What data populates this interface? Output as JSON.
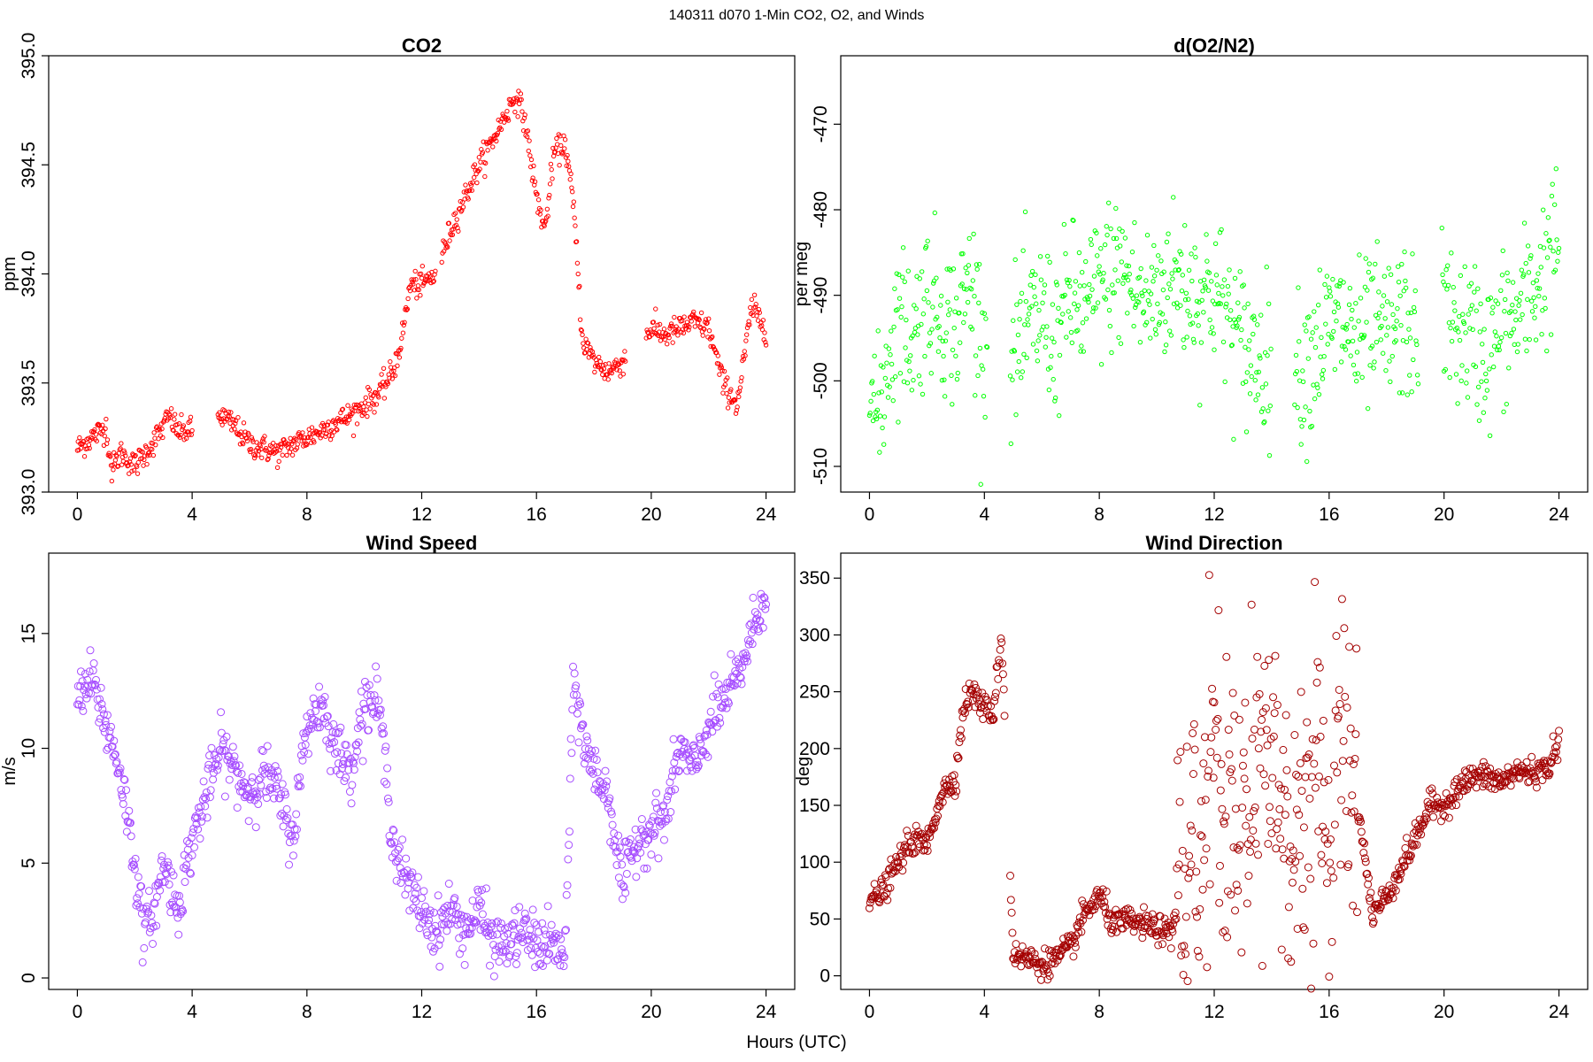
{
  "figure": {
    "main_title": "140311   d070   1-Min CO2, O2, and Winds",
    "shared_xlabel": "Hours (UTC)"
  },
  "chart_data": [
    {
      "id": "co2",
      "type": "scatter",
      "title": "CO2",
      "xlabel": "",
      "ylabel": "ppm",
      "xlim": [
        -1,
        25
      ],
      "ylim": [
        393.0,
        395.0
      ],
      "xticks": [
        0,
        4,
        8,
        12,
        16,
        20,
        24
      ],
      "yticks": [
        393.0,
        393.5,
        394.0,
        394.5,
        395.0
      ],
      "ytick_labels": [
        "393.0",
        "393.5",
        "394.0",
        "394.5",
        "395.0"
      ],
      "yaxis_rotated": true,
      "marker_size": 2.2,
      "color": "#ff0000",
      "grid": false,
      "series_points_approx": {
        "x": [
          0.0,
          0.5,
          1.0,
          1.2,
          1.5,
          2.0,
          2.5,
          3.0,
          3.2,
          3.5,
          4.0,
          5.0,
          5.5,
          6.0,
          6.5,
          7.0,
          7.5,
          8.0,
          8.5,
          9.0,
          9.5,
          10.0,
          10.5,
          11.0,
          11.3,
          11.6,
          12.0,
          12.5,
          13.0,
          13.5,
          14.0,
          14.5,
          15.0,
          15.3,
          15.6,
          16.0,
          16.3,
          16.6,
          17.0,
          17.3,
          17.6,
          18.0,
          18.5,
          19.0,
          20.0,
          20.5,
          21.0,
          21.5,
          22.0,
          22.5,
          23.0,
          23.5,
          24.0
        ],
        "y": [
          393.2,
          393.25,
          393.3,
          393.1,
          393.18,
          393.12,
          393.2,
          393.3,
          393.35,
          393.28,
          393.28,
          393.35,
          393.3,
          393.22,
          393.2,
          393.18,
          393.22,
          393.25,
          393.28,
          393.32,
          393.35,
          393.4,
          393.45,
          393.55,
          393.7,
          393.95,
          393.95,
          394.0,
          394.2,
          394.35,
          394.5,
          394.62,
          394.75,
          394.82,
          394.7,
          394.35,
          394.2,
          394.55,
          394.6,
          394.3,
          393.7,
          393.6,
          393.55,
          393.6,
          393.75,
          393.72,
          393.75,
          393.78,
          393.75,
          393.5,
          393.4,
          393.85,
          393.75
        ]
      }
    },
    {
      "id": "o2n2",
      "type": "scatter",
      "title": "d(O2/N2)",
      "xlabel": "",
      "ylabel": "per meg",
      "xlim": [
        -1,
        25
      ],
      "ylim": [
        -513,
        -462
      ],
      "xticks": [
        0,
        4,
        8,
        12,
        16,
        20,
        24
      ],
      "yticks": [
        -510,
        -500,
        -490,
        -480,
        -470
      ],
      "ytick_labels": [
        "-510",
        "-500",
        "-490",
        "-480",
        "-470"
      ],
      "yaxis_rotated": true,
      "marker_size": 2.2,
      "color": "#00ff00",
      "grid": false,
      "series_points_approx": {
        "x": [
          0.0,
          0.3,
          0.6,
          1.0,
          1.5,
          2.0,
          2.5,
          3.0,
          3.5,
          4.0,
          5.0,
          5.5,
          6.0,
          6.5,
          7.0,
          7.5,
          8.0,
          8.5,
          9.0,
          9.5,
          10.0,
          10.5,
          11.0,
          11.5,
          12.0,
          13.0,
          13.5,
          15.0,
          15.5,
          16.0,
          16.5,
          17.0,
          17.5,
          18.0,
          18.5,
          19.0,
          20.0,
          20.5,
          21.0,
          21.5,
          22.0,
          22.5,
          23.0,
          23.5,
          24.0
        ],
        "y": [
          -500,
          -505,
          -498,
          -492,
          -495,
          -490,
          -492,
          -494,
          -488,
          -496,
          -497,
          -494,
          -492,
          -495,
          -490,
          -492,
          -489,
          -487,
          -488,
          -491,
          -490,
          -488,
          -489,
          -490,
          -489,
          -496,
          -497,
          -499,
          -496,
          -494,
          -493,
          -496,
          -494,
          -495,
          -493,
          -494,
          -492,
          -494,
          -495,
          -497,
          -494,
          -493,
          -490,
          -487,
          -483
        ]
      }
    },
    {
      "id": "wind_speed",
      "type": "scatter",
      "title": "Wind Speed",
      "xlabel": "",
      "ylabel": "m/s",
      "xlim": [
        -1,
        25
      ],
      "ylim": [
        -0.5,
        18.5
      ],
      "xticks": [
        0,
        4,
        8,
        12,
        16,
        20,
        24
      ],
      "yticks": [
        0,
        5,
        10,
        15
      ],
      "ytick_labels": [
        "0",
        "5",
        "10",
        "15"
      ],
      "yaxis_rotated": true,
      "marker_size": 4,
      "color": "#a64dff",
      "grid": false,
      "series_points_approx": {
        "x": [
          0.0,
          0.5,
          1.0,
          1.5,
          2.0,
          2.3,
          2.7,
          3.0,
          3.5,
          4.0,
          4.5,
          5.0,
          5.5,
          6.0,
          6.5,
          7.0,
          7.5,
          8.0,
          8.5,
          9.0,
          9.5,
          10.0,
          10.5,
          11.0,
          11.5,
          12.0,
          12.5,
          13.0,
          13.5,
          14.0,
          14.5,
          15.0,
          15.5,
          16.0,
          16.5,
          17.0,
          17.3,
          17.7,
          18.0,
          18.5,
          19.0,
          19.5,
          20.0,
          20.5,
          21.0,
          21.5,
          22.0,
          22.5,
          23.0,
          23.5,
          24.0
        ],
        "y": [
          12,
          13,
          11,
          9,
          5,
          2,
          3,
          5,
          3,
          6,
          8,
          10,
          9,
          8,
          9,
          8,
          6,
          11,
          12,
          10,
          9,
          12,
          12,
          6,
          4,
          3,
          2,
          3,
          2,
          3,
          1.5,
          1.5,
          2,
          1.5,
          1.5,
          1,
          13,
          10,
          9,
          8,
          4,
          6,
          6.5,
          7,
          10,
          9,
          11,
          12,
          13,
          15,
          17
        ]
      }
    },
    {
      "id": "wind_direction",
      "type": "scatter",
      "title": "Wind Direction",
      "xlabel": "",
      "ylabel": "deg",
      "xlim": [
        -1,
        25
      ],
      "ylim": [
        -12,
        372
      ],
      "xticks": [
        0,
        4,
        8,
        12,
        16,
        20,
        24
      ],
      "yticks": [
        0,
        50,
        100,
        150,
        200,
        250,
        300,
        350
      ],
      "ytick_labels": [
        "0",
        "50",
        "100",
        "150",
        "200",
        "250",
        "300",
        "350"
      ],
      "yaxis_rotated": false,
      "marker_size": 4,
      "color": "#a40000",
      "grid": false,
      "series_points_approx": {
        "x": [
          0.0,
          0.5,
          1.0,
          1.5,
          2.0,
          2.5,
          3.0,
          3.3,
          3.6,
          4.0,
          4.3,
          4.6,
          5.0,
          5.5,
          6.0,
          6.5,
          7.0,
          7.5,
          8.0,
          8.5,
          9.0,
          9.5,
          10.0,
          10.5,
          11.0,
          11.5,
          12.0,
          12.5,
          13.0,
          13.5,
          14.0,
          14.5,
          15.0,
          15.5,
          16.0,
          16.5,
          17.0,
          17.5,
          18.0,
          18.5,
          19.0,
          19.5,
          20.0,
          20.5,
          21.0,
          21.5,
          22.0,
          22.5,
          23.0,
          23.5,
          24.0
        ],
        "y": [
          65,
          75,
          100,
          120,
          115,
          160,
          175,
          240,
          250,
          235,
          230,
          300,
          20,
          15,
          10,
          15,
          25,
          55,
          70,
          45,
          48,
          45,
          42,
          35,
          100,
          90,
          250,
          120,
          150,
          180,
          200,
          150,
          120,
          200,
          80,
          250,
          150,
          55,
          70,
          95,
          120,
          150,
          150,
          165,
          175,
          175,
          170,
          180,
          180,
          180,
          205
        ]
      }
    }
  ]
}
